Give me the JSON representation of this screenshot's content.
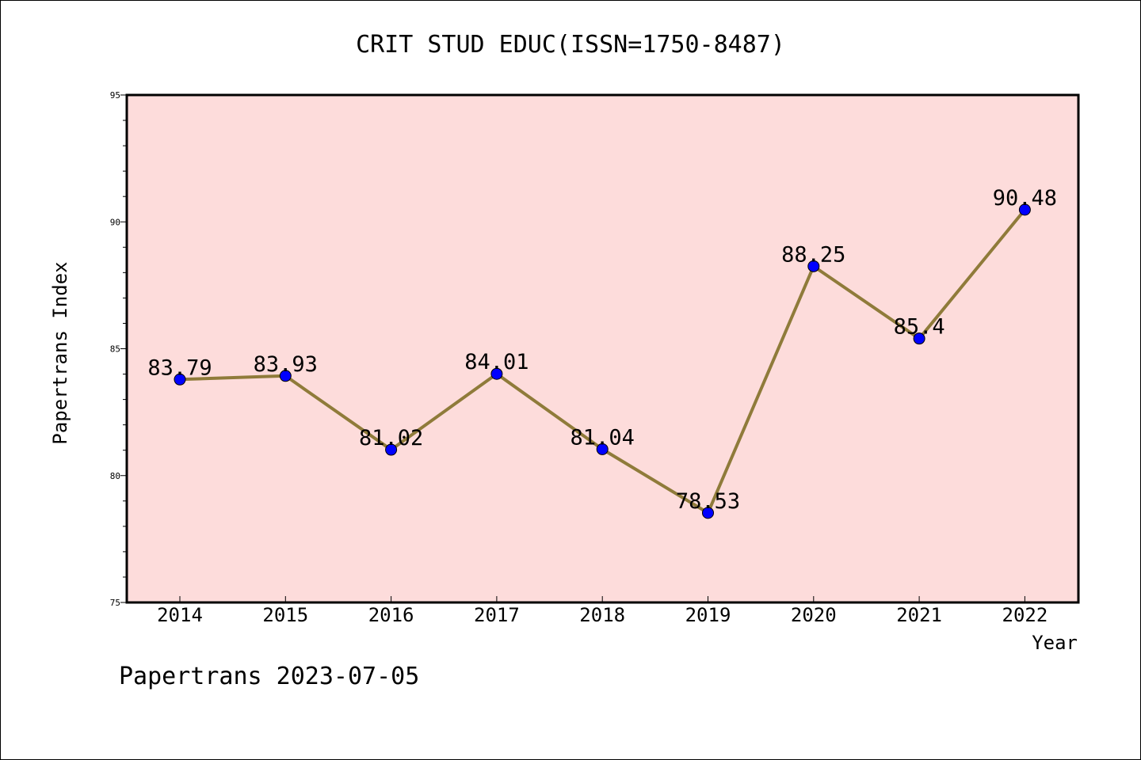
{
  "chart_data": {
    "type": "line",
    "title": "CRIT STUD EDUC(ISSN=1750-8487)",
    "xlabel": "Year",
    "ylabel": "Papertrans Index",
    "categories": [
      "2014",
      "2015",
      "2016",
      "2017",
      "2018",
      "2019",
      "2020",
      "2021",
      "2022"
    ],
    "values": [
      83.79,
      83.93,
      81.02,
      84.01,
      81.04,
      78.53,
      88.25,
      85.4,
      90.48
    ],
    "data_labels": [
      "83.79",
      "83.93",
      "81.02",
      "84.01",
      "81.04",
      "78.53",
      "88.25",
      "85.4",
      "90.48"
    ],
    "ylim": [
      75,
      95
    ],
    "yticks": [
      75,
      80,
      85,
      90,
      95
    ],
    "minor_tick_step": 1,
    "grid": false,
    "footer": "Papertrans 2023-07-05",
    "colors": {
      "plot_background": "#fddcdb",
      "line": "#8f7b3a",
      "marker": "#0000ff"
    }
  }
}
